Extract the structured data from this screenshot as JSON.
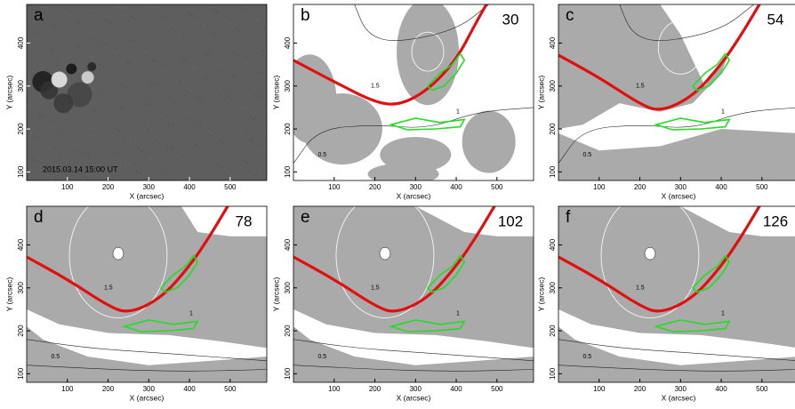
{
  "axes": {
    "xlabel": "X (arcsec)",
    "ylabel": "Y (arcsec)",
    "xlim": [
      0,
      590
    ],
    "ylim": [
      80,
      490
    ],
    "xticks": [
      100,
      200,
      300,
      400,
      500
    ],
    "yticks": [
      100,
      200,
      300,
      400
    ]
  },
  "contour_levels": [
    "0.5",
    "1",
    "1.5"
  ],
  "panels": [
    {
      "label": "a",
      "caption": "2015.03.14  15:00 UT"
    },
    {
      "label": "b",
      "height": 30
    },
    {
      "label": "c",
      "height": 54
    },
    {
      "label": "d",
      "height": 78
    },
    {
      "label": "e",
      "height": 102
    },
    {
      "label": "f",
      "height": 126
    }
  ]
}
